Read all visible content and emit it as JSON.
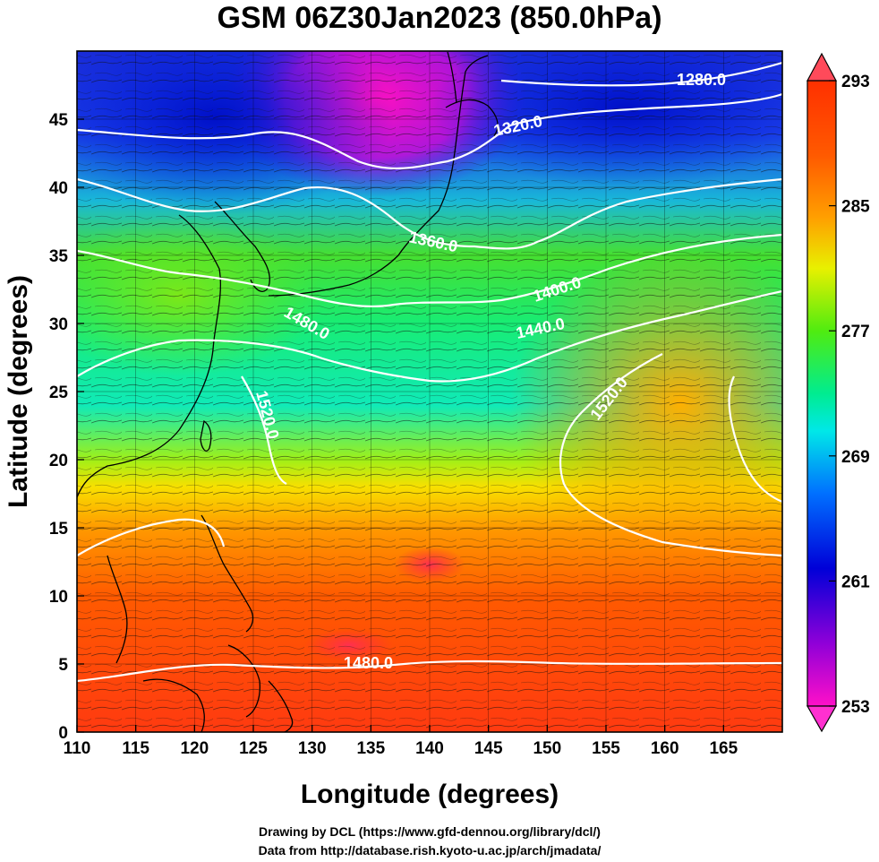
{
  "title": "GSM 06Z30Jan2023 (850.0hPa)",
  "map": {
    "x_axis": {
      "label": "Longitude (degrees)",
      "ticks": [
        110,
        115,
        120,
        125,
        130,
        135,
        140,
        145,
        150,
        155,
        160,
        165
      ],
      "range": [
        110,
        170
      ]
    },
    "y_axis": {
      "label": "Latitude  (degrees)",
      "ticks": [
        0,
        5,
        10,
        15,
        20,
        25,
        30,
        35,
        40,
        45
      ],
      "range": [
        0,
        50
      ]
    },
    "shaded_field": "temperature",
    "contour_field": "geopotential height",
    "contour_labels": [
      "1280.0",
      "1320.0",
      "1360.0",
      "1400.0",
      "1440.0",
      "1480.0",
      "1520.0",
      "1480.0",
      "1520.0",
      "1480.0"
    ],
    "vectors": "wind streamlines",
    "coastline_color": "#000000",
    "contour_color": "#ffffff",
    "grid": true
  },
  "colorbar": {
    "ticks": [
      "293",
      "285",
      "277",
      "269",
      "261",
      "253"
    ],
    "colors_top_to_bottom": [
      "#ff4a4a",
      "#ff2a00",
      "#ff6a00",
      "#ffa000",
      "#ffd200",
      "#d8ff00",
      "#5cf000",
      "#20e800",
      "#00ec80",
      "#00f0e0",
      "#00a8ff",
      "#0050ff",
      "#0000e0",
      "#2000c0",
      "#a000d8",
      "#ff00c8",
      "#ff40d0"
    ]
  },
  "credit": {
    "line1": "Drawing by DCL (https://www.gfd-dennou.org/library/dcl/)",
    "line2": "Data from http://database.rish.kyoto-u.ac.jp/arch/jmadata/"
  }
}
